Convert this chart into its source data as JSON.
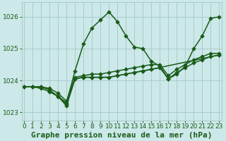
{
  "background_color": "#cce8e8",
  "grid_color": "#aacccc",
  "line_color": "#1a5c1a",
  "xlabel": "Graphe pression niveau de la mer (hPa)",
  "ylim": [
    1022.75,
    1026.45
  ],
  "xlim": [
    -0.3,
    23.3
  ],
  "yticks": [
    1023,
    1024,
    1025,
    1026
  ],
  "xticks": [
    0,
    1,
    2,
    3,
    4,
    5,
    6,
    7,
    8,
    9,
    10,
    11,
    12,
    13,
    14,
    15,
    16,
    17,
    18,
    19,
    20,
    21,
    22,
    23
  ],
  "lines": [
    {
      "x": [
        0,
        1,
        2,
        3,
        4,
        5,
        6,
        7,
        8,
        9,
        10,
        11,
        12,
        13,
        14,
        15,
        16,
        17,
        18,
        19,
        20,
        21,
        22,
        23
      ],
      "y": [
        1023.8,
        1023.8,
        1023.8,
        1023.7,
        1023.5,
        1023.3,
        1024.3,
        1025.15,
        1025.65,
        1025.9,
        1026.15,
        1025.85,
        1025.4,
        1025.05,
        1025.0,
        1024.6,
        1024.45,
        1024.05,
        1024.2,
        1024.45,
        1025.0,
        1025.4,
        1025.95,
        1026.0
      ]
    },
    {
      "x": [
        0,
        1,
        2,
        3,
        4,
        5,
        6,
        7,
        8,
        9,
        10,
        11,
        12,
        13,
        14,
        15,
        16,
        17,
        18,
        19,
        20,
        21,
        22,
        23
      ],
      "y": [
        1023.8,
        1023.8,
        1023.75,
        1023.65,
        1023.5,
        1023.25,
        1024.05,
        1024.1,
        1024.1,
        1024.1,
        1024.1,
        1024.15,
        1024.2,
        1024.25,
        1024.3,
        1024.35,
        1024.4,
        1024.05,
        1024.25,
        1024.4,
        1024.55,
        1024.65,
        1024.75,
        1024.8
      ]
    },
    {
      "x": [
        0,
        1,
        2,
        3,
        4,
        5,
        6,
        7,
        8,
        9,
        10,
        11,
        12,
        13,
        14,
        15,
        16,
        17,
        18,
        19,
        20,
        21,
        22,
        23
      ],
      "y": [
        1023.8,
        1023.8,
        1023.8,
        1023.75,
        1023.6,
        1023.35,
        1024.1,
        1024.15,
        1024.2,
        1024.2,
        1024.25,
        1024.3,
        1024.35,
        1024.4,
        1024.45,
        1024.5,
        1024.5,
        1024.15,
        1024.35,
        1024.5,
        1024.65,
        1024.75,
        1024.85,
        1024.85
      ]
    },
    {
      "x": [
        3,
        4,
        5,
        6,
        7,
        8,
        9,
        10,
        11,
        12,
        13,
        14,
        15,
        23
      ],
      "y": [
        1023.65,
        1023.5,
        1023.2,
        1024.05,
        1024.1,
        1024.1,
        1024.1,
        1024.1,
        1024.15,
        1024.2,
        1024.25,
        1024.3,
        1024.35,
        1024.8
      ]
    }
  ],
  "marker": "D",
  "markersize": 2.8,
  "linewidth": 1.1,
  "xlabel_fontsize": 8,
  "tick_fontsize": 6.5
}
